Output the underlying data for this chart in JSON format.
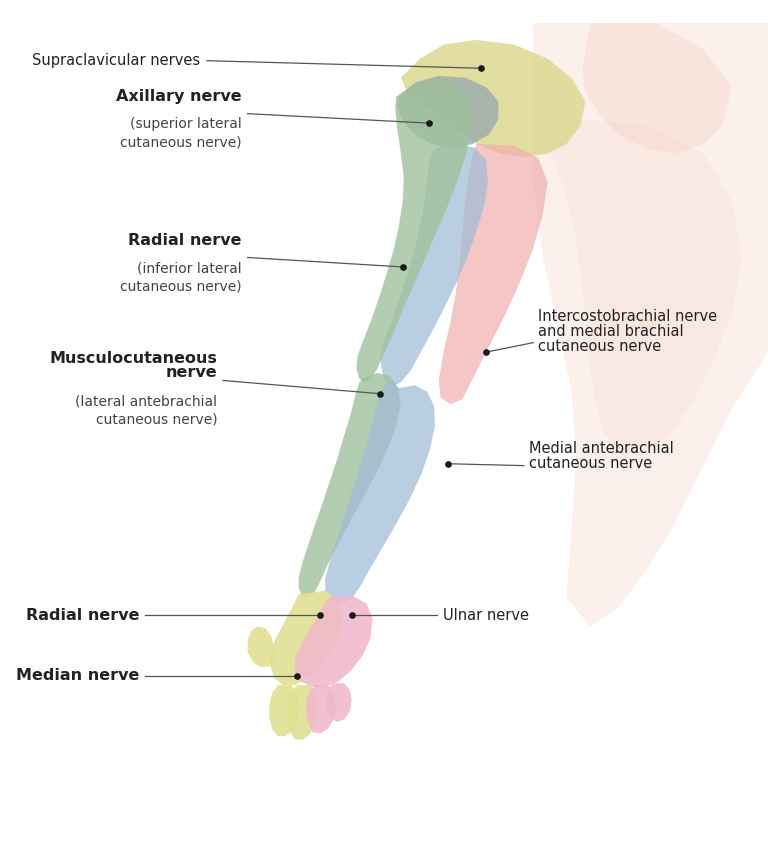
{
  "background_color": "#ffffff",
  "figure_size": [
    7.68,
    8.48
  ],
  "dpi": 100,
  "colors": {
    "supraclavicular": "#ddd890",
    "axillary_gray": "#9aadad",
    "intercostobrachial_pink": "#f0b0b0",
    "radial_green": "#9ec09a",
    "blue_medial": "#a0bcd8",
    "ulnar_pink": "#f0b8cc",
    "radial_hand_yellow": "#e0e090",
    "body_skin": "#f5cfc0",
    "torso_light": "#f8d8d0"
  },
  "labels": {
    "supraclavicular": "Supraclavicular nerves",
    "axillary_bold": "Axillary nerve",
    "axillary_sub": "(superior lateral\ncutaneous nerve)",
    "radial_bold": "Radial nerve",
    "radial_sub": "(inferior lateral\ncutaneous nerve)",
    "musculo_bold": "Musculocutaneous",
    "musculo_bold2": "nerve",
    "musculo_sub": "(lateral antebrachial\ncutaneous nerve)",
    "radial_hand": "Radial nerve",
    "median": "Median nerve",
    "intercosto": "Intercostobrachial nerve\nand medial brachial\ncutaneous nerve",
    "medial_ante": "Medial antebrachial\ncutaneous nerve",
    "ulnar": "Ulnar nerve"
  }
}
